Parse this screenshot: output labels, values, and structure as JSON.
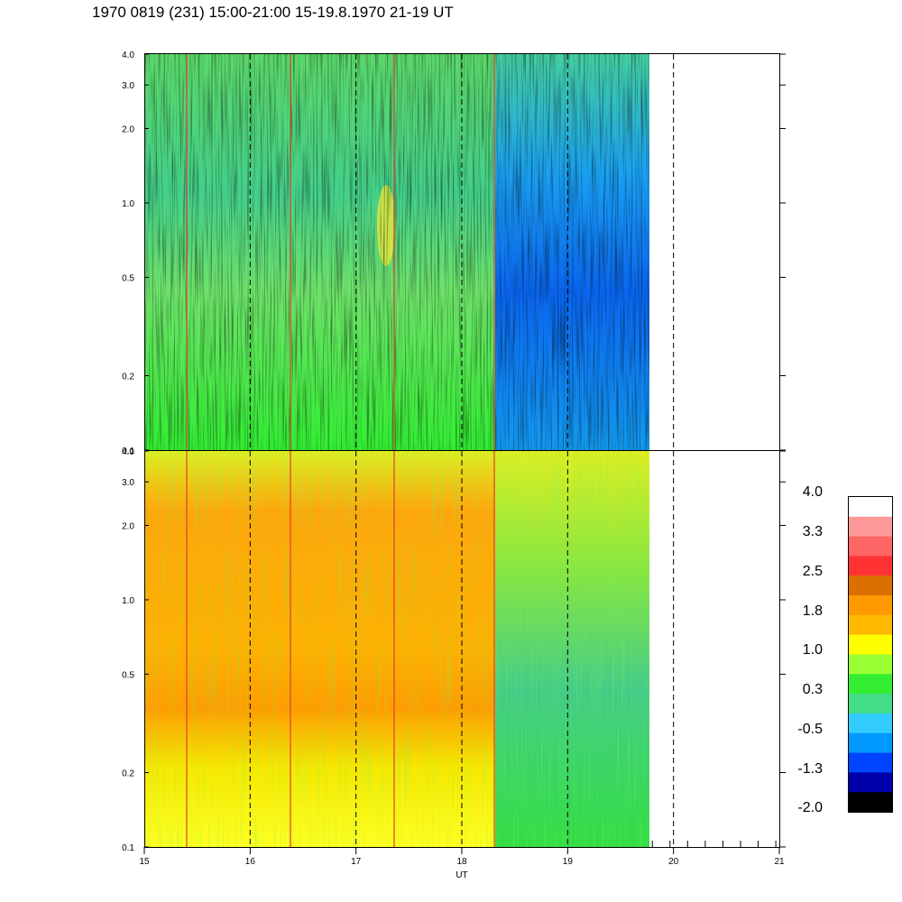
{
  "header": {
    "title": "1970 0819 (231) 15:00-21:00 15-19.8.1970  21-19 UT"
  },
  "chart_data": [
    {
      "type": "heatmap",
      "panel": "upper",
      "x_range": [
        15,
        21
      ],
      "data_end_x": 19.78,
      "y_scale": "log",
      "y_range": [
        0.1,
        4.0
      ],
      "y_ticks": [
        "0.1",
        "0.2",
        "0.5",
        "1.0",
        "2.0",
        "3.0",
        "4.0"
      ],
      "dashed_hour_lines": [
        16,
        17,
        18,
        19,
        20
      ],
      "dominant_levels": [
        {
          "x_from": 15,
          "x_to": 18.3,
          "level": 0.3
        },
        {
          "x_from": 18.3,
          "x_to": 19.78,
          "level": -1.3
        }
      ]
    },
    {
      "type": "heatmap",
      "panel": "lower",
      "x_range": [
        15,
        21
      ],
      "data_end_x": 19.78,
      "y_scale": "log",
      "y_range": [
        0.1,
        4.0
      ],
      "y_ticks": [
        "0.1",
        "0.2",
        "0.5",
        "1.0",
        "2.0",
        "3.0",
        "4.0"
      ],
      "x_ticks": [
        "15",
        "16",
        "17",
        "18",
        "19",
        "20",
        "21"
      ],
      "xlabel": "UT",
      "dashed_hour_lines": [
        16,
        17,
        18,
        19,
        20
      ],
      "dominant_levels": [
        {
          "x_from": 15,
          "x_to": 18.3,
          "level": 1.8
        },
        {
          "x_from": 18.3,
          "x_to": 19.78,
          "level": 0.3
        }
      ]
    }
  ],
  "colorbar": {
    "labels": [
      "4.0",
      "3.3",
      "2.5",
      "1.8",
      "1.0",
      "0.3",
      "-0.5",
      "-1.3",
      "-2.0"
    ],
    "colors": [
      "#ffffff",
      "#ff9999",
      "#ff6666",
      "#ff3333",
      "#d97000",
      "#ff9900",
      "#ffb800",
      "#ffff00",
      "#99ff33",
      "#33ee33",
      "#44dd88",
      "#33ccff",
      "#0099ff",
      "#0044ff",
      "#0000aa",
      "#000000"
    ]
  }
}
